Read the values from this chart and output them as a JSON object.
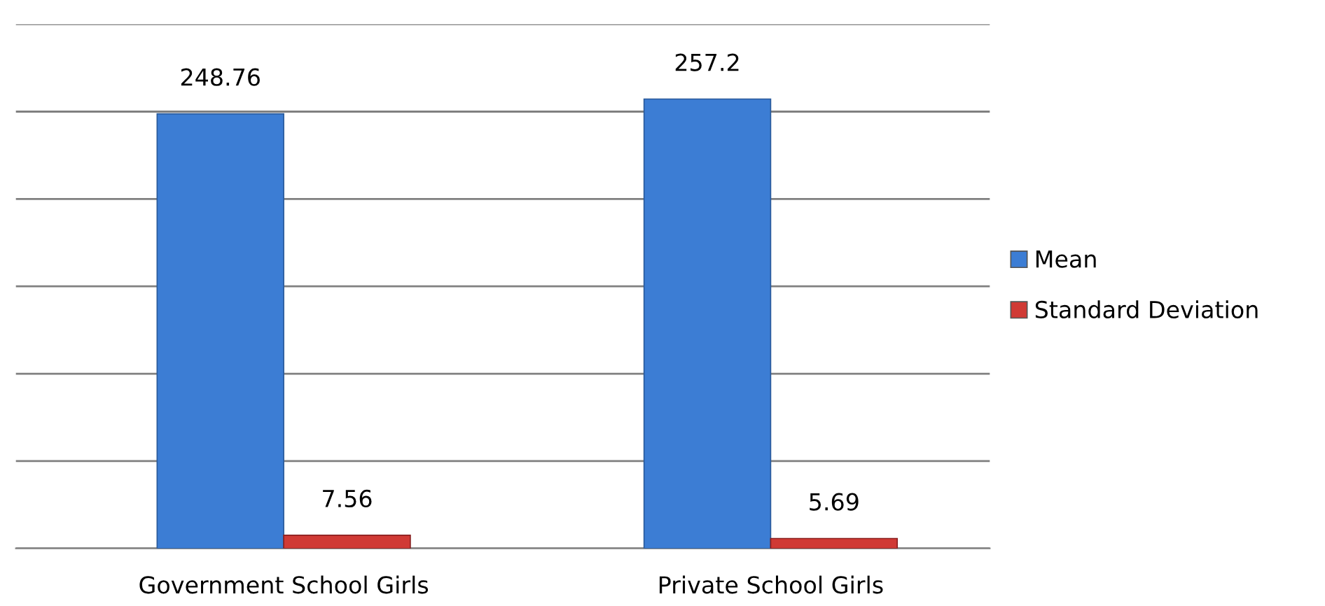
{
  "chart_data": {
    "type": "bar",
    "categories": [
      "Government School Girls",
      "Private School Girls"
    ],
    "series": [
      {
        "name": "Mean",
        "color": "#3c7dd4",
        "values": [
          248.76,
          257.2
        ]
      },
      {
        "name": "Standard Deviation",
        "color": "#d03a35",
        "values": [
          7.56,
          5.69
        ]
      }
    ],
    "ylim": [
      0,
      300
    ],
    "yticks": [
      {
        "value": 0,
        "label": null
      },
      {
        "value": 50,
        "label": null
      },
      {
        "value": 100,
        "label": null
      },
      {
        "value": 150,
        "label": null
      },
      {
        "value": 200,
        "label": null
      },
      {
        "value": 250,
        "label": null
      },
      {
        "value": 300,
        "label": null
      }
    ],
    "tick_labels": "x",
    "grid": "y",
    "legend": "right",
    "data_labels": true
  }
}
